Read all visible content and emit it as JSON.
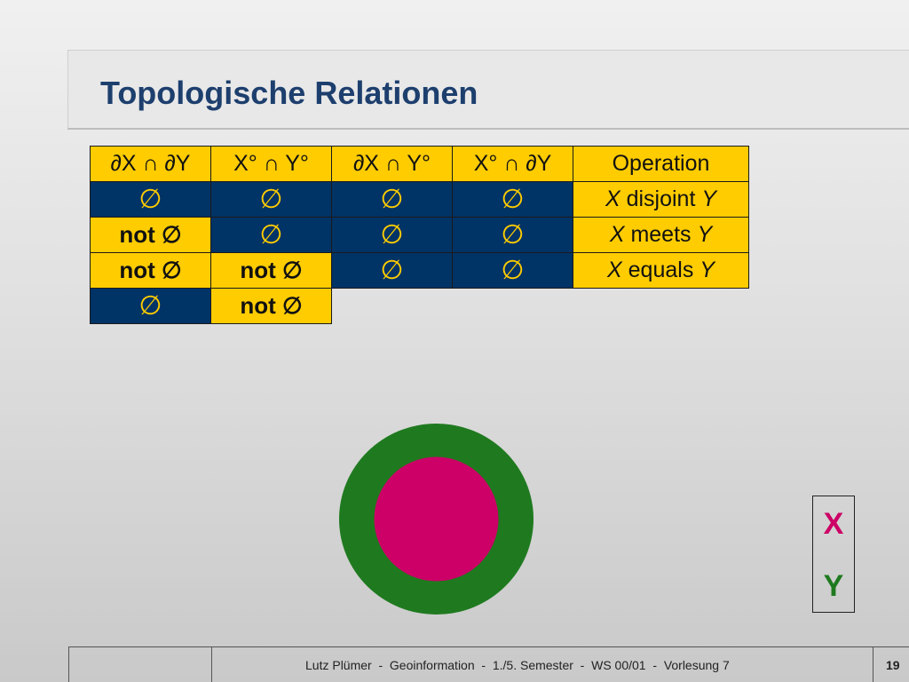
{
  "title": "Topologische Relationen",
  "table": {
    "headers": [
      "∂X ∩ ∂Y",
      "X° ∩ Y°",
      "∂X ∩ Y°",
      "X° ∩ ∂Y",
      "Operation"
    ],
    "rows": [
      {
        "cells": [
          "∅",
          "∅",
          "∅",
          "∅"
        ],
        "op": {
          "x": "X",
          "rel": "disjoint",
          "y": "Y"
        }
      },
      {
        "cells": [
          "not ∅",
          "∅",
          "∅",
          "∅"
        ],
        "op": {
          "x": "X",
          "rel": "meets",
          "y": "Y"
        }
      },
      {
        "cells": [
          "not ∅",
          "not ∅",
          "∅",
          "∅"
        ],
        "op": {
          "x": "X",
          "rel": "equals",
          "y": "Y"
        }
      },
      {
        "cells": [
          "∅",
          "not ∅"
        ]
      }
    ],
    "not_label": "not",
    "empty_symbol": "∅"
  },
  "legend": {
    "x": "X",
    "y": "Y",
    "x_color": "#cc0066",
    "y_color": "#1f7a1f"
  },
  "colors": {
    "yellow": "#ffcc00",
    "navy": "#003366",
    "title": "#1d3f6e"
  },
  "footer": {
    "text": "Lutz Plümer  -  Geoinformation  -  1./5. Semester  -  WS 00/01  -  Vorlesung 7",
    "page": "19"
  }
}
